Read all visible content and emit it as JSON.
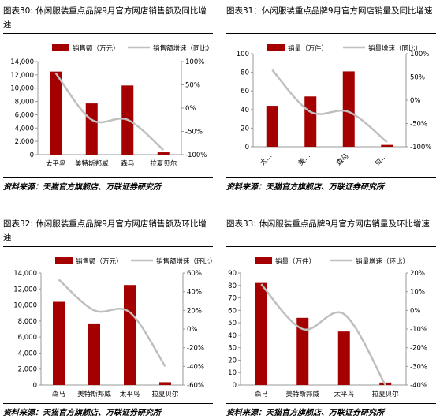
{
  "colors": {
    "bar": "#a40000",
    "line": "#bfbfbf",
    "axis": "#999999"
  },
  "charts": [
    {
      "caption": "图表30: 休闲服装重点品牌9月官方网店销售额及同比增速",
      "source": "资料来源：天猫官方旗舰店、万联证券研究所"
    },
    {
      "caption": "图表31：休闲服装重点品牌9月官方网店销量及同比增速",
      "source": "资料来源：天猫官方旗舰店、万联证券研究所"
    },
    {
      "caption": "图表32: 休闲服装重点品牌9月官方网店销售额及环比增速",
      "source": "资料来源：天猫官方旗舰店、万联证券研究所"
    },
    {
      "caption": "图表33: 休闲服装重点品牌9月官方网店销量及环比增速",
      "source": "资料来源：天猫官方旗舰店、万联证券研究所"
    }
  ],
  "chart_data": [
    {
      "type": "bar",
      "categories": [
        "太平鸟",
        "美特斯邦威",
        "森马",
        "拉夏贝尔"
      ],
      "series": [
        {
          "name": "销售额（万元）",
          "type": "bar",
          "axis": "left",
          "values": [
            12500,
            7700,
            10400,
            350
          ]
        },
        {
          "name": "销售额增速（同比）",
          "type": "line",
          "axis": "right",
          "values": [
            75,
            -25,
            -25,
            -90
          ]
        }
      ],
      "ylim": [
        0,
        14000
      ],
      "yticks": [
        0,
        2000,
        4000,
        6000,
        8000,
        10000,
        12000,
        14000
      ],
      "ytick_labels": [
        "0",
        "2,000",
        "4,000",
        "6,000",
        "8,000",
        "10,000",
        "12,000",
        "14,000"
      ],
      "y2lim": [
        -100,
        100
      ],
      "y2ticks": [
        -100,
        -50,
        0,
        50,
        100
      ],
      "y2tick_labels": [
        "-100%",
        "-50%",
        "0%",
        "50%",
        "100%"
      ],
      "legend": "top"
    },
    {
      "type": "bar",
      "categories": [
        "太…",
        "美…",
        "森马",
        "拉…"
      ],
      "series": [
        {
          "name": "销量（万件）",
          "type": "bar",
          "axis": "left",
          "values": [
            44,
            54,
            81,
            2
          ]
        },
        {
          "name": "销量增速（同比）",
          "type": "line",
          "axis": "right",
          "values": [
            65,
            -25,
            -25,
            -90
          ]
        }
      ],
      "ylim": [
        0,
        100
      ],
      "yticks": [
        0,
        20,
        40,
        60,
        80,
        100
      ],
      "ytick_labels": [
        "0",
        "20",
        "40",
        "60",
        "80",
        "100"
      ],
      "y2lim": [
        -100,
        100
      ],
      "y2ticks": [
        -100,
        -50,
        0,
        50,
        100
      ],
      "y2tick_labels": [
        "-100%",
        "-50%",
        "0%",
        "50%",
        "100%"
      ],
      "legend": "top"
    },
    {
      "type": "bar",
      "categories": [
        "森马",
        "美特斯邦威",
        "太平鸟",
        "拉夏贝尔"
      ],
      "series": [
        {
          "name": "销售额（万元）",
          "type": "bar",
          "axis": "left",
          "values": [
            10400,
            7700,
            12500,
            350
          ]
        },
        {
          "name": "销售额增速（环比）",
          "type": "line",
          "axis": "right",
          "values": [
            53,
            20,
            18,
            -40
          ]
        }
      ],
      "ylim": [
        0,
        14000
      ],
      "yticks": [
        0,
        2000,
        4000,
        6000,
        8000,
        10000,
        12000,
        14000
      ],
      "ytick_labels": [
        "0",
        "2,000",
        "4,000",
        "6,000",
        "8,000",
        "10,000",
        "12,000",
        "14,000"
      ],
      "y2lim": [
        -60,
        60
      ],
      "y2ticks": [
        -60,
        -40,
        -20,
        0,
        20,
        40,
        60
      ],
      "y2tick_labels": [
        "-60%",
        "-40%",
        "-20%",
        "0%",
        "20%",
        "40%",
        "60%"
      ],
      "legend": "top"
    },
    {
      "type": "bar",
      "categories": [
        "森马",
        "美特斯邦威",
        "太平鸟",
        "拉夏贝尔"
      ],
      "series": [
        {
          "name": "销量（万件）",
          "type": "bar",
          "axis": "left",
          "values": [
            82,
            54,
            43,
            2
          ]
        },
        {
          "name": "销量增速（环比）",
          "type": "line",
          "axis": "right",
          "values": [
            14,
            -10,
            -2,
            -40
          ]
        }
      ],
      "ylim": [
        0,
        90
      ],
      "yticks": [
        0,
        10,
        20,
        30,
        40,
        50,
        60,
        70,
        80,
        90
      ],
      "ytick_labels": [
        "0",
        "10",
        "20",
        "30",
        "40",
        "50",
        "60",
        "70",
        "80",
        "90"
      ],
      "y2lim": [
        -40,
        20
      ],
      "y2ticks": [
        -40,
        -30,
        -20,
        -10,
        0,
        10,
        20
      ],
      "y2tick_labels": [
        "-40%",
        "-30%",
        "-20%",
        "-10%",
        "0%",
        "10%",
        "20%"
      ],
      "legend": "top"
    }
  ]
}
